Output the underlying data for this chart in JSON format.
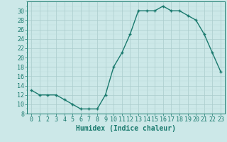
{
  "x": [
    0,
    1,
    2,
    3,
    4,
    5,
    6,
    7,
    8,
    9,
    10,
    11,
    12,
    13,
    14,
    15,
    16,
    17,
    18,
    19,
    20,
    21,
    22,
    23
  ],
  "y": [
    13,
    12,
    12,
    12,
    11,
    10,
    9,
    9,
    9,
    12,
    18,
    21,
    25,
    30,
    30,
    30,
    31,
    30,
    30,
    29,
    28,
    25,
    21,
    17
  ],
  "line_color": "#1a7a6e",
  "marker": "+",
  "bg_color": "#cce8e8",
  "grid_major_color": "#aacccc",
  "grid_minor_color": "#bbdddd",
  "xlabel": "Humidex (Indice chaleur)",
  "xlim": [
    -0.5,
    23.5
  ],
  "ylim": [
    8,
    32
  ],
  "yticks": [
    8,
    10,
    12,
    14,
    16,
    18,
    20,
    22,
    24,
    26,
    28,
    30
  ],
  "xticks": [
    0,
    1,
    2,
    3,
    4,
    5,
    6,
    7,
    8,
    9,
    10,
    11,
    12,
    13,
    14,
    15,
    16,
    17,
    18,
    19,
    20,
    21,
    22,
    23
  ],
  "font_size": 6,
  "xlabel_fontsize": 7,
  "line_width": 1.0,
  "marker_size": 3.5
}
